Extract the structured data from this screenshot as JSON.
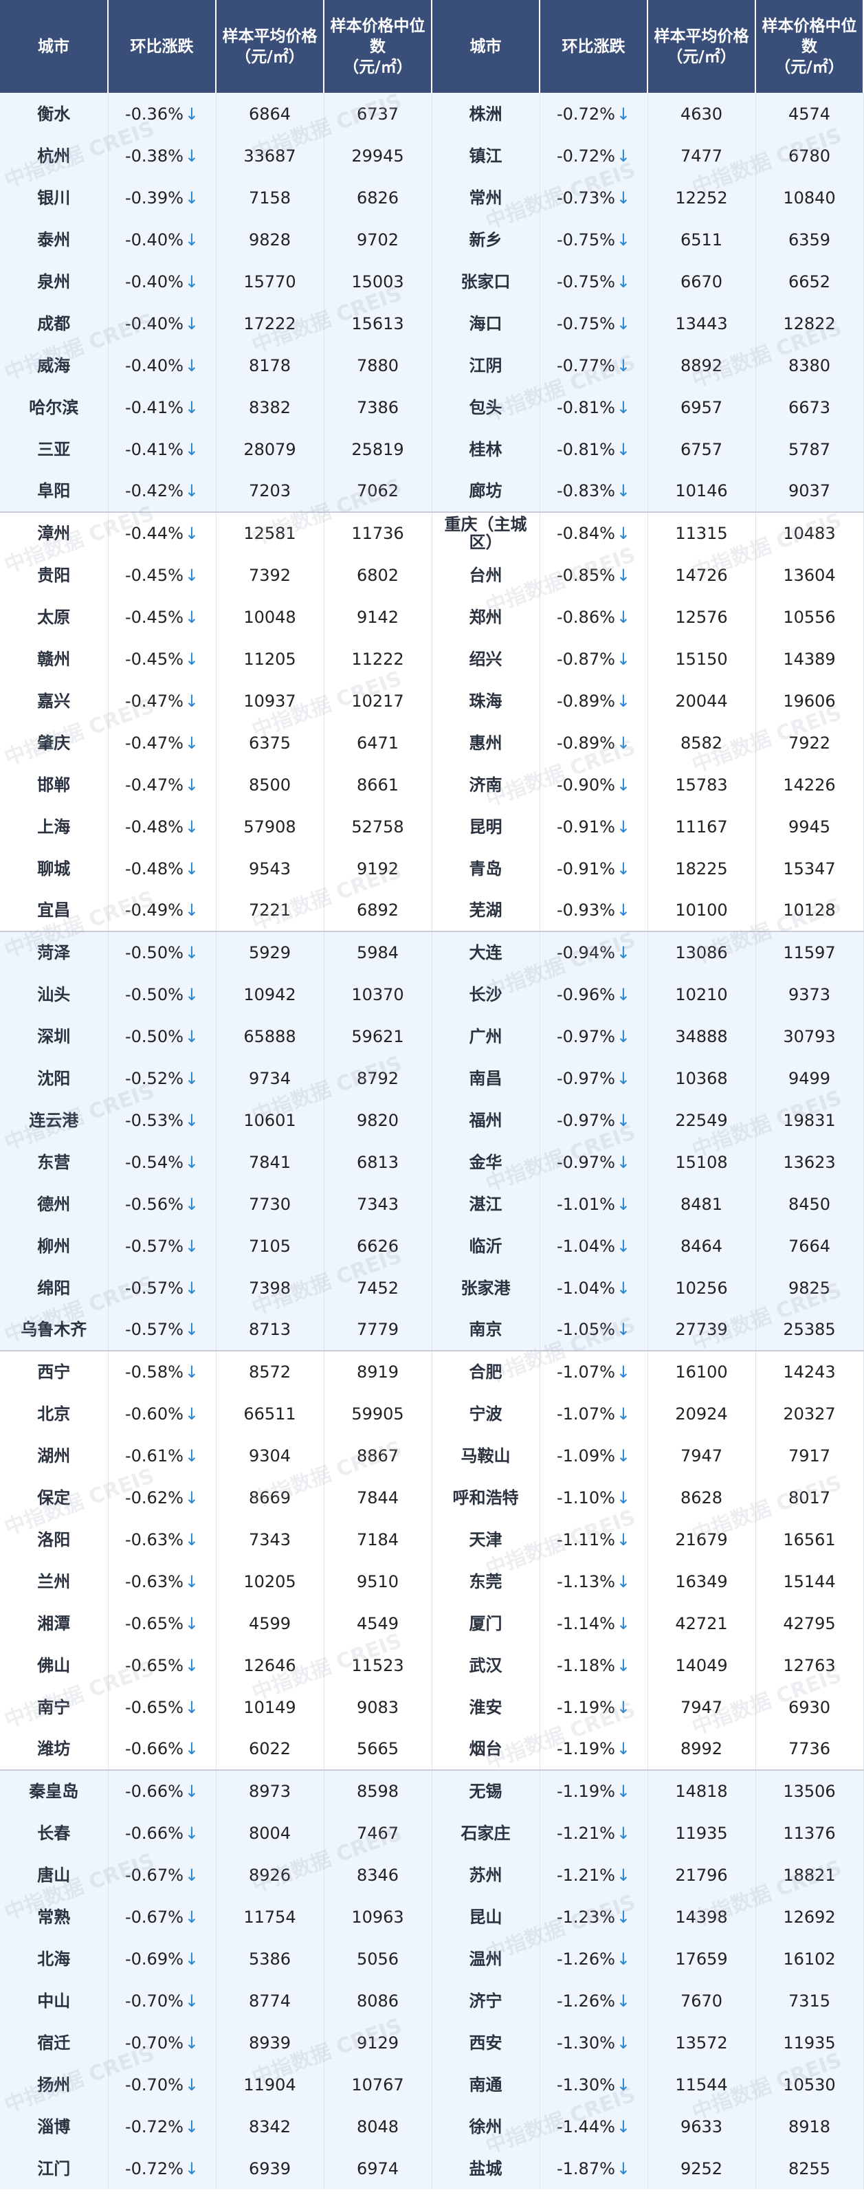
{
  "headers": [
    "城市",
    "环比涨跌",
    "样本平均价格",
    "样本价格中位数",
    "城市",
    "环比涨跌",
    "样本平均价格",
    "样本价格中位数"
  ],
  "unit": "（元/㎡）",
  "watermark": "中指数据 CREIS",
  "colors": {
    "header": "#394f79",
    "band": "#eef5fd",
    "arrow": "#2a86d1"
  },
  "arrow_icon": "down-arrow",
  "rows": [
    [
      "衡水",
      "-0.36%",
      "6864",
      "6737",
      "株洲",
      "-0.72%",
      "4630",
      "4574"
    ],
    [
      "杭州",
      "-0.38%",
      "33687",
      "29945",
      "镇江",
      "-0.72%",
      "7477",
      "6780"
    ],
    [
      "银川",
      "-0.39%",
      "7158",
      "6826",
      "常州",
      "-0.73%",
      "12252",
      "10840"
    ],
    [
      "泰州",
      "-0.40%",
      "9828",
      "9702",
      "新乡",
      "-0.75%",
      "6511",
      "6359"
    ],
    [
      "泉州",
      "-0.40%",
      "15770",
      "15003",
      "张家口",
      "-0.75%",
      "6670",
      "6652"
    ],
    [
      "成都",
      "-0.40%",
      "17222",
      "15613",
      "海口",
      "-0.75%",
      "13443",
      "12822"
    ],
    [
      "威海",
      "-0.40%",
      "8178",
      "7880",
      "江阴",
      "-0.77%",
      "8892",
      "8380"
    ],
    [
      "哈尔滨",
      "-0.41%",
      "8382",
      "7386",
      "包头",
      "-0.81%",
      "6957",
      "6673"
    ],
    [
      "三亚",
      "-0.41%",
      "28079",
      "25819",
      "桂林",
      "-0.81%",
      "6757",
      "5787"
    ],
    [
      "阜阳",
      "-0.42%",
      "7203",
      "7062",
      "廊坊",
      "-0.83%",
      "10146",
      "9037"
    ],
    [
      "漳州",
      "-0.44%",
      "12581",
      "11736",
      "重庆（主城区）",
      "-0.84%",
      "11315",
      "10483"
    ],
    [
      "贵阳",
      "-0.45%",
      "7392",
      "6802",
      "台州",
      "-0.85%",
      "14726",
      "13604"
    ],
    [
      "太原",
      "-0.45%",
      "10048",
      "9142",
      "郑州",
      "-0.86%",
      "12576",
      "10556"
    ],
    [
      "赣州",
      "-0.45%",
      "11205",
      "11222",
      "绍兴",
      "-0.87%",
      "15150",
      "14389"
    ],
    [
      "嘉兴",
      "-0.47%",
      "10937",
      "10217",
      "珠海",
      "-0.89%",
      "20044",
      "19606"
    ],
    [
      "肇庆",
      "-0.47%",
      "6375",
      "6471",
      "惠州",
      "-0.89%",
      "8582",
      "7922"
    ],
    [
      "邯郸",
      "-0.47%",
      "8500",
      "8661",
      "济南",
      "-0.90%",
      "15783",
      "14226"
    ],
    [
      "上海",
      "-0.48%",
      "57908",
      "52758",
      "昆明",
      "-0.91%",
      "11167",
      "9945"
    ],
    [
      "聊城",
      "-0.48%",
      "9543",
      "9192",
      "青岛",
      "-0.91%",
      "18225",
      "15347"
    ],
    [
      "宜昌",
      "-0.49%",
      "7221",
      "6892",
      "芜湖",
      "-0.93%",
      "10100",
      "10128"
    ],
    [
      "菏泽",
      "-0.50%",
      "5929",
      "5984",
      "大连",
      "-0.94%",
      "13086",
      "11597"
    ],
    [
      "汕头",
      "-0.50%",
      "10942",
      "10370",
      "长沙",
      "-0.96%",
      "10210",
      "9373"
    ],
    [
      "深圳",
      "-0.50%",
      "65888",
      "59621",
      "广州",
      "-0.97%",
      "34888",
      "30793"
    ],
    [
      "沈阳",
      "-0.52%",
      "9734",
      "8792",
      "南昌",
      "-0.97%",
      "10368",
      "9499"
    ],
    [
      "连云港",
      "-0.53%",
      "10601",
      "9820",
      "福州",
      "-0.97%",
      "22549",
      "19831"
    ],
    [
      "东营",
      "-0.54%",
      "7841",
      "6813",
      "金华",
      "-0.97%",
      "15108",
      "13623"
    ],
    [
      "德州",
      "-0.56%",
      "7730",
      "7343",
      "湛江",
      "-1.01%",
      "8481",
      "8450"
    ],
    [
      "柳州",
      "-0.57%",
      "7105",
      "6626",
      "临沂",
      "-1.04%",
      "8464",
      "7664"
    ],
    [
      "绵阳",
      "-0.57%",
      "7398",
      "7452",
      "张家港",
      "-1.04%",
      "10256",
      "9825"
    ],
    [
      "乌鲁木齐",
      "-0.57%",
      "8713",
      "7779",
      "南京",
      "-1.05%",
      "27739",
      "25385"
    ],
    [
      "西宁",
      "-0.58%",
      "8572",
      "8919",
      "合肥",
      "-1.07%",
      "16100",
      "14243"
    ],
    [
      "北京",
      "-0.60%",
      "66511",
      "59905",
      "宁波",
      "-1.07%",
      "20924",
      "20327"
    ],
    [
      "湖州",
      "-0.61%",
      "9304",
      "8867",
      "马鞍山",
      "-1.09%",
      "7947",
      "7917"
    ],
    [
      "保定",
      "-0.62%",
      "8669",
      "7844",
      "呼和浩特",
      "-1.10%",
      "8628",
      "8017"
    ],
    [
      "洛阳",
      "-0.63%",
      "7343",
      "7184",
      "天津",
      "-1.11%",
      "21679",
      "16561"
    ],
    [
      "兰州",
      "-0.63%",
      "10205",
      "9510",
      "东莞",
      "-1.13%",
      "16349",
      "15144"
    ],
    [
      "湘潭",
      "-0.65%",
      "4599",
      "4549",
      "厦门",
      "-1.14%",
      "42721",
      "42795"
    ],
    [
      "佛山",
      "-0.65%",
      "12646",
      "11523",
      "武汉",
      "-1.18%",
      "14049",
      "12763"
    ],
    [
      "南宁",
      "-0.65%",
      "10149",
      "9083",
      "淮安",
      "-1.19%",
      "7947",
      "6930"
    ],
    [
      "潍坊",
      "-0.66%",
      "6022",
      "5665",
      "烟台",
      "-1.19%",
      "8992",
      "7736"
    ],
    [
      "秦皇岛",
      "-0.66%",
      "8973",
      "8598",
      "无锡",
      "-1.19%",
      "14818",
      "13506"
    ],
    [
      "长春",
      "-0.66%",
      "8004",
      "7467",
      "石家庄",
      "-1.21%",
      "11935",
      "11376"
    ],
    [
      "唐山",
      "-0.67%",
      "8926",
      "8346",
      "苏州",
      "-1.21%",
      "21796",
      "18821"
    ],
    [
      "常熟",
      "-0.67%",
      "11754",
      "10963",
      "昆山",
      "-1.23%",
      "14398",
      "12692"
    ],
    [
      "北海",
      "-0.69%",
      "5386",
      "5056",
      "温州",
      "-1.26%",
      "17659",
      "16102"
    ],
    [
      "中山",
      "-0.70%",
      "8774",
      "8086",
      "济宁",
      "-1.26%",
      "7670",
      "7315"
    ],
    [
      "宿迁",
      "-0.70%",
      "8939",
      "9129",
      "西安",
      "-1.30%",
      "13572",
      "11935"
    ],
    [
      "扬州",
      "-0.70%",
      "11904",
      "10767",
      "南通",
      "-1.30%",
      "11544",
      "10530"
    ],
    [
      "淄博",
      "-0.72%",
      "8342",
      "8048",
      "徐州",
      "-1.44%",
      "9633",
      "8918"
    ],
    [
      "江门",
      "-0.72%",
      "6939",
      "6974",
      "盐城",
      "-1.87%",
      "9252",
      "8255"
    ]
  ]
}
